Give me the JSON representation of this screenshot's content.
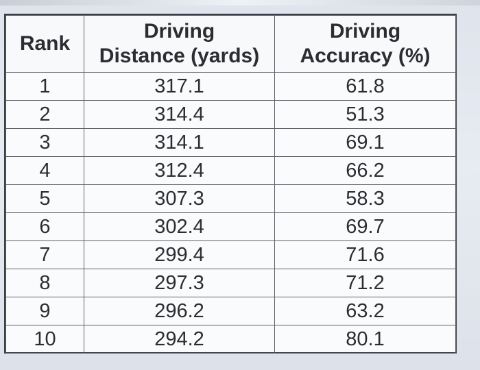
{
  "table": {
    "headers": {
      "rank": "Rank",
      "distance_line1": "Driving",
      "distance_line2": "Distance (yards)",
      "accuracy_line1": "Driving",
      "accuracy_line2": "Accuracy (%)"
    },
    "rows": [
      {
        "rank": "1",
        "distance": "317.1",
        "accuracy": "61.8"
      },
      {
        "rank": "2",
        "distance": "314.4",
        "accuracy": "51.3"
      },
      {
        "rank": "3",
        "distance": "314.1",
        "accuracy": "69.1"
      },
      {
        "rank": "4",
        "distance": "312.4",
        "accuracy": "66.2"
      },
      {
        "rank": "5",
        "distance": "307.3",
        "accuracy": "58.3"
      },
      {
        "rank": "6",
        "distance": "302.4",
        "accuracy": "69.7"
      },
      {
        "rank": "7",
        "distance": "299.4",
        "accuracy": "71.6"
      },
      {
        "rank": "8",
        "distance": "297.3",
        "accuracy": "71.2"
      },
      {
        "rank": "9",
        "distance": "296.2",
        "accuracy": "63.2"
      },
      {
        "rank": "10",
        "distance": "294.2",
        "accuracy": "80.1"
      }
    ]
  }
}
